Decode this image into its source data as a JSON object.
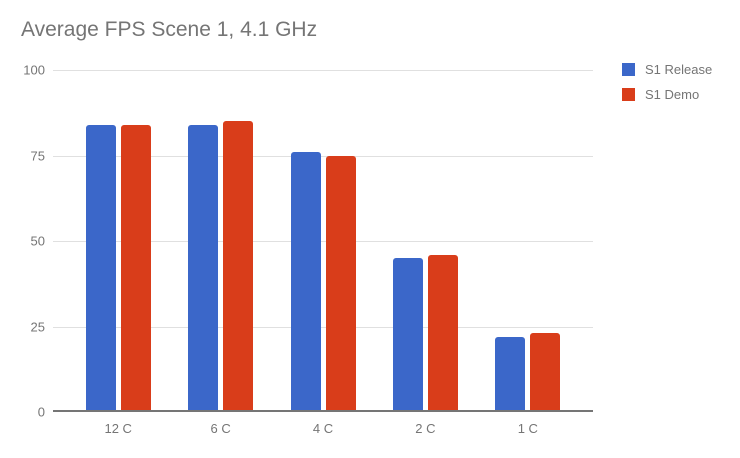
{
  "chart_data": {
    "type": "bar",
    "title": "Average FPS Scene 1, 4.1 GHz",
    "categories": [
      "12 C",
      "6 C",
      "4 C",
      "2 C",
      "1 C"
    ],
    "series": [
      {
        "name": "S1 Release",
        "color": "#3b67c9",
        "values": [
          84,
          84,
          76,
          45,
          22
        ]
      },
      {
        "name": "S1 Demo",
        "color": "#d93d1a",
        "values": [
          84,
          85,
          75,
          46,
          23
        ]
      }
    ],
    "xlabel": "",
    "ylabel": "",
    "ylim": [
      0,
      100
    ],
    "yticks": [
      0,
      25,
      50,
      75,
      100
    ],
    "grid": true,
    "legend_position": "top-right"
  },
  "theme": {
    "background": "#ffffff",
    "title_color": "#757575",
    "tick_label_color": "#757575",
    "gridline_color": "#e0e0e0",
    "axis_line_color": "#757575"
  }
}
